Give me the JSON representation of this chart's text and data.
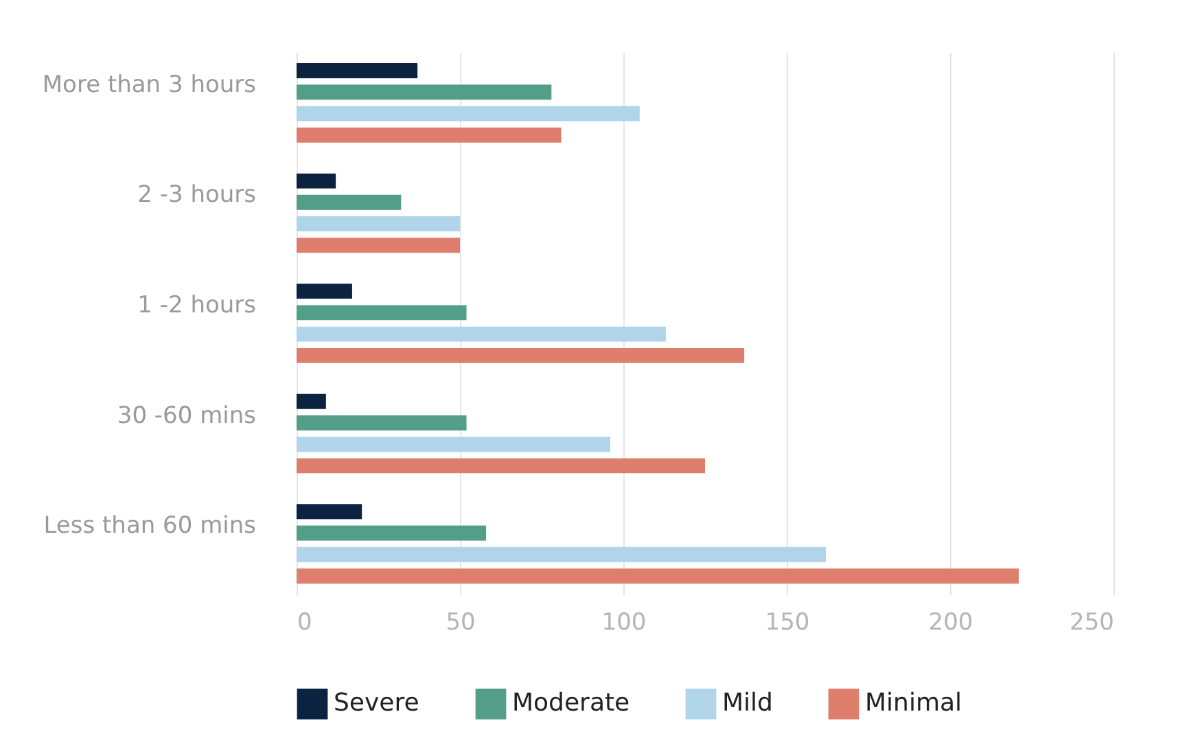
{
  "chart_data": {
    "type": "bar",
    "orientation": "horizontal",
    "categories": [
      "More than 3 hours",
      "2 -3 hours",
      "1 -2 hours",
      "30 -60 mins",
      "Less than 60 mins"
    ],
    "series": [
      {
        "name": "Severe",
        "color": "#0b2341",
        "values": [
          37,
          12,
          17,
          9,
          20
        ]
      },
      {
        "name": "Moderate",
        "color": "#529e88",
        "values": [
          78,
          32,
          52,
          52,
          58
        ]
      },
      {
        "name": "Mild",
        "color": "#b0d4ea",
        "values": [
          105,
          50,
          113,
          96,
          162
        ]
      },
      {
        "name": "Minimal",
        "color": "#e07e6e",
        "values": [
          81,
          50,
          137,
          125,
          221
        ]
      }
    ],
    "xlim": [
      0,
      250
    ],
    "xticks": [
      0,
      50,
      100,
      150,
      200,
      250
    ],
    "grid": "x",
    "legend": "bottom"
  }
}
